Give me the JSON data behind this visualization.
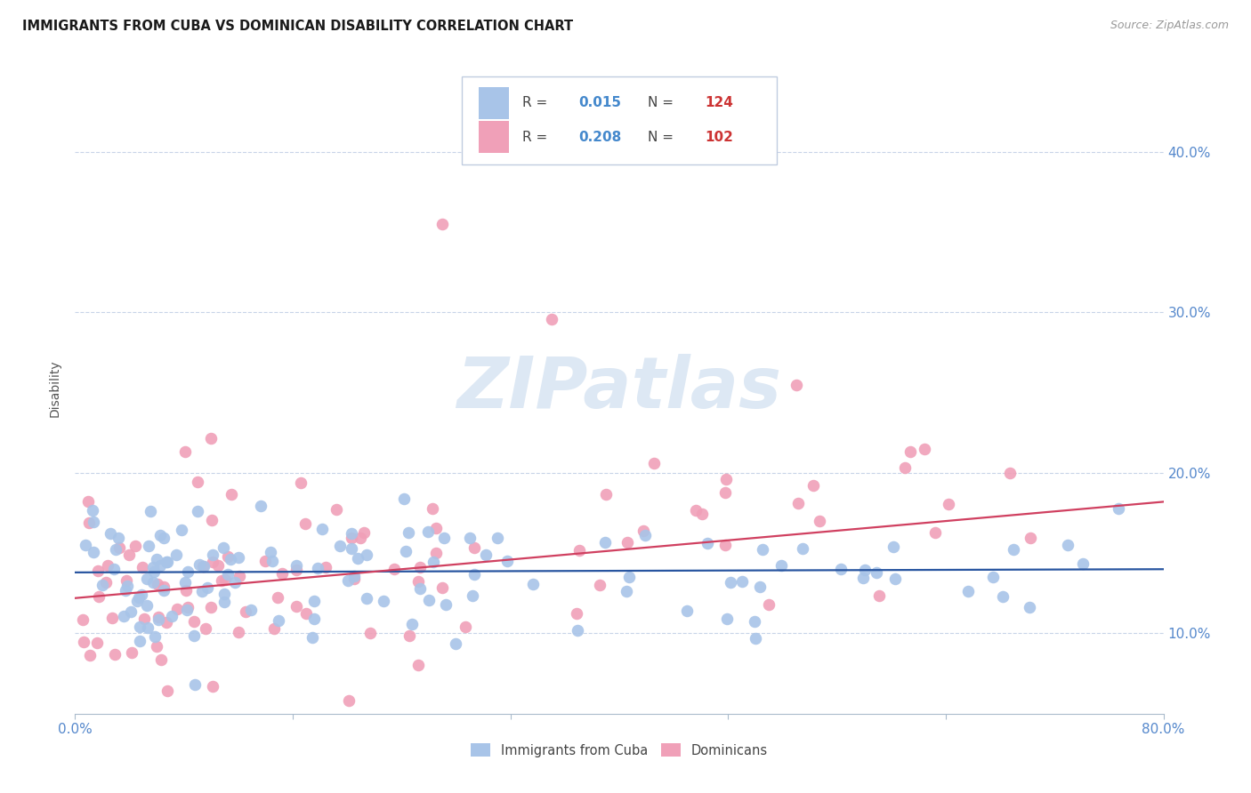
{
  "title": "IMMIGRANTS FROM CUBA VS DOMINICAN DISABILITY CORRELATION CHART",
  "source_text": "Source: ZipAtlas.com",
  "ylabel": "Disability",
  "legend_entry1_label": "Immigrants from Cuba",
  "legend_entry1_R": "0.015",
  "legend_entry1_N": "124",
  "legend_entry2_label": "Dominicans",
  "legend_entry2_R": "0.208",
  "legend_entry2_N": "102",
  "cuba_color": "#a8c4e8",
  "dominican_color": "#f0a0b8",
  "cuba_line_color": "#2855a0",
  "dominican_line_color": "#d04060",
  "background_color": "#ffffff",
  "grid_color": "#c8d4e8",
  "watermark_color": "#dde8f4",
  "title_color": "#1a1a1a",
  "source_color": "#999999",
  "ylabel_color": "#555555",
  "axis_tick_color": "#5588cc",
  "legend_R_color": "#4488cc",
  "legend_N_color": "#cc3333",
  "legend_text_color": "#444444",
  "legend_border_color": "#c0cce0",
  "bottom_tick_color": "#aabbcc",
  "xlim": [
    0.0,
    0.8
  ],
  "ylim": [
    0.05,
    0.455
  ],
  "ytick_vals": [
    0.1,
    0.2,
    0.3,
    0.4
  ],
  "xtick_show_labels": [
    0.0,
    0.8
  ],
  "cuba_line_start_y": 0.138,
  "cuba_line_end_y": 0.14,
  "dom_line_start_y": 0.122,
  "dom_line_end_y": 0.182
}
